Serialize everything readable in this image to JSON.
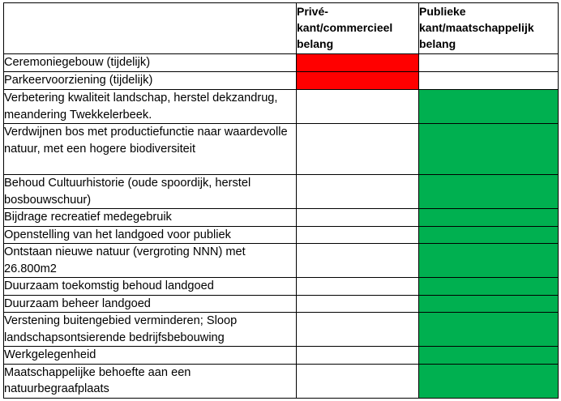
{
  "headers": {
    "description": "",
    "private": "Privé-kant/commercieel belang",
    "public": "Publieke kant/maatschappelijk belang"
  },
  "colors": {
    "private_marker": "#ff0000",
    "public_marker": "#00b050"
  },
  "rows": [
    {
      "label": "Ceremoniegebouw (tijdelijk)",
      "private": true,
      "public": false
    },
    {
      "label": "Parkeervoorziening (tijdelijk)",
      "private": true,
      "public": false
    },
    {
      "label": "Verbetering kwaliteit landschap, herstel dekzandrug, meandering Twekkelerbeek.",
      "private": false,
      "public": true
    },
    {
      "label": "Verdwijnen bos met productiefunctie naar waardevolle natuur, met een hogere biodiversiteit",
      "private": false,
      "public": true
    },
    {
      "label": "Behoud Cultuurhistorie (oude spoordijk, herstel bosbouwschuur)",
      "private": false,
      "public": true
    },
    {
      "label": "Bijdrage recreatief medegebruik",
      "private": false,
      "public": true
    },
    {
      "label": "Openstelling van het landgoed voor publiek",
      "private": false,
      "public": true
    },
    {
      "label": "Ontstaan nieuwe natuur (vergroting NNN) met 26.800m2",
      "private": false,
      "public": true
    },
    {
      "label": "Duurzaam toekomstig behoud landgoed",
      "private": false,
      "public": true
    },
    {
      "label": "Duurzaam beheer landgoed",
      "private": false,
      "public": true
    },
    {
      "label": "Verstening buitengebied verminderen; Sloop landschapsontsierende bedrijfsbebouwing",
      "private": false,
      "public": true
    },
    {
      "label": "Werkgelegenheid",
      "private": false,
      "public": true
    },
    {
      "label": "Maatschappelijke behoefte aan een natuurbegraafplaats",
      "private": false,
      "public": true
    }
  ]
}
